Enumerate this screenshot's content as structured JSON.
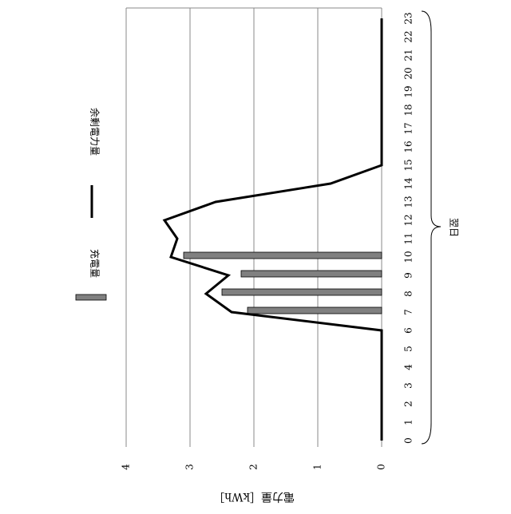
{
  "chart_data": {
    "type": "bar_line",
    "x": [
      0,
      1,
      2,
      3,
      4,
      5,
      6,
      7,
      8,
      9,
      10,
      11,
      12,
      13,
      14,
      15,
      16,
      17,
      18,
      19,
      20,
      21,
      22,
      23
    ],
    "series": [
      {
        "name": "充電量",
        "kind": "bar",
        "color": "#808080",
        "values": [
          0,
          0,
          0,
          0,
          0,
          0,
          0,
          2.1,
          2.5,
          2.2,
          3.1,
          0,
          0,
          0,
          0,
          0,
          0,
          0,
          0,
          0,
          0,
          0,
          0,
          0
        ]
      },
      {
        "name": "余剰電力量",
        "kind": "line",
        "color": "#000000",
        "values": [
          0,
          0,
          0,
          0,
          0,
          0,
          0,
          2.35,
          2.75,
          2.4,
          3.3,
          3.2,
          3.4,
          2.6,
          0.8,
          0,
          0,
          0,
          0,
          0,
          0,
          0,
          0,
          0
        ]
      }
    ],
    "xlim": [
      0,
      23
    ],
    "xticks": [
      0,
      1,
      2,
      3,
      4,
      5,
      6,
      7,
      8,
      9,
      10,
      11,
      12,
      13,
      14,
      15,
      16,
      17,
      18,
      19,
      20,
      21,
      22,
      23
    ],
    "ylim": [
      0,
      4
    ],
    "yticks": [
      0,
      1,
      2,
      3,
      4
    ],
    "ylabel": "電力量［kWh］",
    "annotation": "翌日",
    "grid": true
  }
}
